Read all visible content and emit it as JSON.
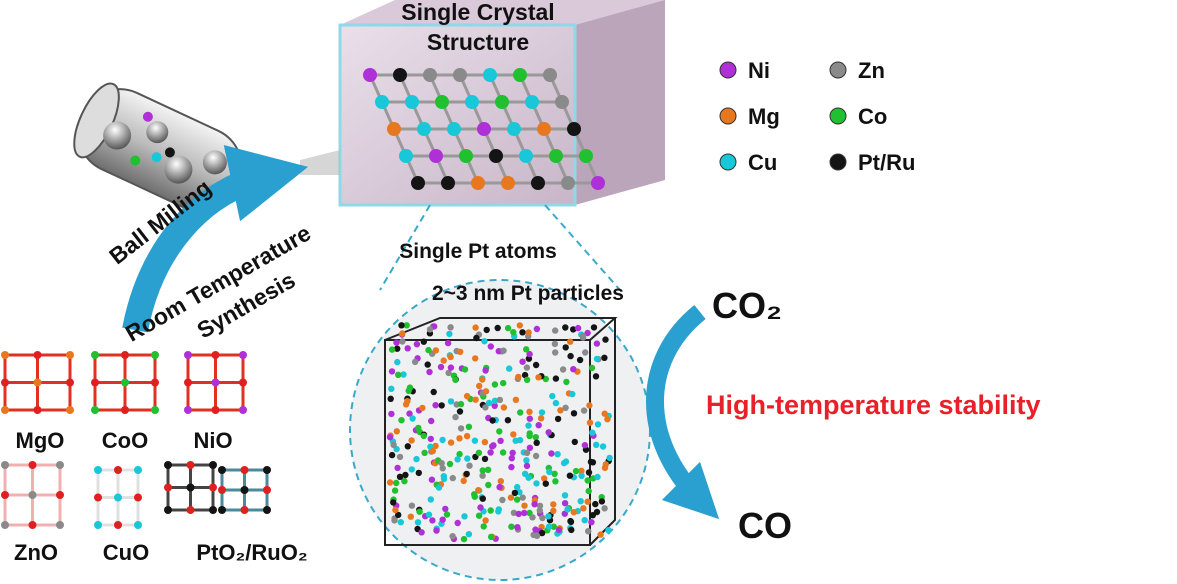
{
  "crystal": {
    "title_line1": "Single Crystal",
    "title_line2": "Structure"
  },
  "legend": [
    {
      "label": "Ni",
      "color": "#b030d8"
    },
    {
      "label": "Zn",
      "color": "#8a8a8a"
    },
    {
      "label": "Mg",
      "color": "#e87820"
    },
    {
      "label": "Co",
      "color": "#20c030"
    },
    {
      "label": "Cu",
      "color": "#18c8d8"
    },
    {
      "label": "Pt/Ru",
      "color": "#141414"
    }
  ],
  "synthesis": {
    "ball_milling": "Ball Milling",
    "room_temperature": "Room Temperature",
    "synthesis": "Synthesis"
  },
  "particles": {
    "line1": "Single Pt atoms",
    "line2": "2~3 nm Pt particles"
  },
  "reaction": {
    "reactant": "CO₂",
    "product": "CO",
    "stability": "High-temperature stability"
  },
  "oxides": [
    "MgO",
    "CoO",
    "NiO",
    "ZnO",
    "CuO",
    "PtO₂/RuO₂"
  ]
}
